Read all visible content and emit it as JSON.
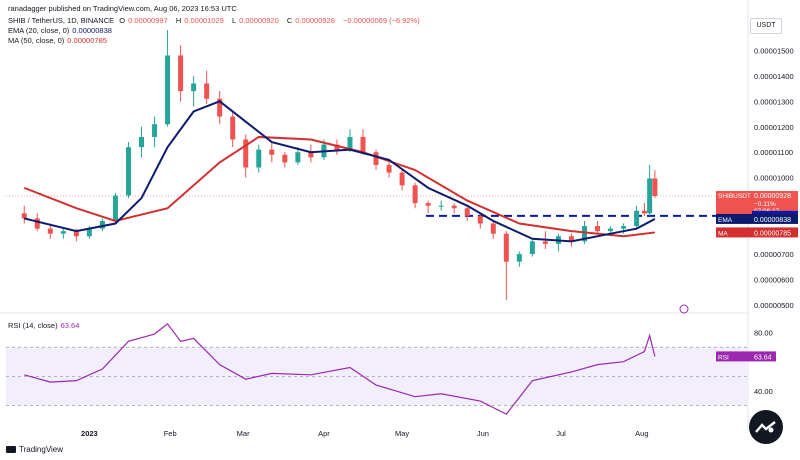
{
  "header": {
    "publisher": "ranadagger published on TradingView.com, Aug 06, 2023 16:53 UTC",
    "symbol_line": {
      "symbol": "SHIB / TetherUS, 1D, BINANCE",
      "o_label": "O",
      "o": "0.00000997",
      "h_label": "H",
      "h": "0.00001029",
      "l_label": "L",
      "l": "0.00000920",
      "c_label": "C",
      "c": "0.00000928",
      "change": "−0.00000069 (−6.92%)"
    },
    "ema_line": {
      "label": "EMA (20, close, 0)",
      "value": "0.00000838"
    },
    "ma_line": {
      "label": "MA (50, close, 0)",
      "value": "0.00000785"
    },
    "rsi_line": {
      "label": "RSI (14, close)",
      "value": "63.64"
    }
  },
  "currency_button": "USDT",
  "price_axis": {
    "ticks": [
      "0.00001500",
      "0.00001400",
      "0.00001300",
      "0.00001200",
      "0.00001100",
      "0.00001000",
      "0.00000700",
      "0.00000600",
      "0.00000500"
    ]
  },
  "rsi_axis": {
    "ticks": [
      "80.00",
      "40.00"
    ]
  },
  "price_labels": {
    "symbol_tag": "SHIBUSDT",
    "price": "0.00000928",
    "change_pct": "−0.11%",
    "countdown": "07:06:17",
    "support": "0.00000850",
    "ema_tag": "EMA",
    "ema_value": "0.00000838",
    "ma_tag": "MA",
    "ma_value": "0.00000785",
    "rsi_tag": "RSI",
    "rsi_value": "63.64"
  },
  "time_axis": [
    "2023",
    "Feb",
    "Mar",
    "Apr",
    "May",
    "Jun",
    "Jul",
    "Aug"
  ],
  "footer": {
    "brand": "TradingView"
  },
  "colors": {
    "up": "#26a69a",
    "down": "#ef5350",
    "ema": "#0d1b6e",
    "ma": "#d32f2f",
    "rsi": "#9c27b0",
    "support_line": "#0a1aa8",
    "rsi_band": "#f3eefb"
  },
  "chart_data": {
    "type": "candlestick",
    "title": "SHIB / TetherUS, 1D, BINANCE",
    "price_ylim": [
      5e-06,
      1.58e-05
    ],
    "support_level": 8.5e-06,
    "candles": [
      {
        "date": "2022-12-07",
        "o": 8.6,
        "h": 8.9,
        "l": 8.2,
        "c": 8.4
      },
      {
        "date": "2022-12-12",
        "o": 8.4,
        "h": 8.6,
        "l": 7.9,
        "c": 8.0
      },
      {
        "date": "2022-12-17",
        "o": 8.0,
        "h": 8.2,
        "l": 7.6,
        "c": 7.8
      },
      {
        "date": "2022-12-22",
        "o": 7.8,
        "h": 8.0,
        "l": 7.6,
        "c": 7.9
      },
      {
        "date": "2022-12-27",
        "o": 7.9,
        "h": 8.0,
        "l": 7.5,
        "c": 7.7
      },
      {
        "date": "2023-01-01",
        "o": 7.7,
        "h": 8.1,
        "l": 7.6,
        "c": 8.0
      },
      {
        "date": "2023-01-06",
        "o": 8.0,
        "h": 8.4,
        "l": 7.9,
        "c": 8.3
      },
      {
        "date": "2023-01-11",
        "o": 8.3,
        "h": 9.4,
        "l": 8.2,
        "c": 9.3
      },
      {
        "date": "2023-01-16",
        "o": 9.3,
        "h": 11.4,
        "l": 9.2,
        "c": 11.2
      },
      {
        "date": "2023-01-21",
        "o": 11.2,
        "h": 12.0,
        "l": 10.8,
        "c": 11.6
      },
      {
        "date": "2023-01-26",
        "o": 11.6,
        "h": 12.4,
        "l": 11.2,
        "c": 12.1
      },
      {
        "date": "2023-01-31",
        "o": 12.1,
        "h": 15.8,
        "l": 12.0,
        "c": 14.8
      },
      {
        "date": "2023-02-05",
        "o": 14.8,
        "h": 15.2,
        "l": 13.0,
        "c": 13.4
      },
      {
        "date": "2023-02-10",
        "o": 13.4,
        "h": 14.0,
        "l": 12.8,
        "c": 13.7
      },
      {
        "date": "2023-02-15",
        "o": 13.7,
        "h": 14.2,
        "l": 12.9,
        "c": 13.1
      },
      {
        "date": "2023-02-20",
        "o": 13.1,
        "h": 13.4,
        "l": 12.1,
        "c": 12.4
      },
      {
        "date": "2023-02-25",
        "o": 12.4,
        "h": 12.6,
        "l": 11.2,
        "c": 11.5
      },
      {
        "date": "2023-03-02",
        "o": 11.5,
        "h": 11.7,
        "l": 10.0,
        "c": 10.4
      },
      {
        "date": "2023-03-07",
        "o": 10.4,
        "h": 11.3,
        "l": 10.2,
        "c": 11.1
      },
      {
        "date": "2023-03-12",
        "o": 11.1,
        "h": 11.4,
        "l": 10.6,
        "c": 10.9
      },
      {
        "date": "2023-03-17",
        "o": 10.9,
        "h": 11.0,
        "l": 10.4,
        "c": 10.6
      },
      {
        "date": "2023-03-22",
        "o": 10.6,
        "h": 11.2,
        "l": 10.5,
        "c": 11.0
      },
      {
        "date": "2023-03-27",
        "o": 11.0,
        "h": 11.3,
        "l": 10.6,
        "c": 10.8
      },
      {
        "date": "2023-04-01",
        "o": 10.8,
        "h": 11.5,
        "l": 10.7,
        "c": 11.3
      },
      {
        "date": "2023-04-06",
        "o": 11.3,
        "h": 11.5,
        "l": 10.9,
        "c": 11.1
      },
      {
        "date": "2023-04-11",
        "o": 11.1,
        "h": 11.9,
        "l": 11.0,
        "c": 11.6
      },
      {
        "date": "2023-04-16",
        "o": 11.6,
        "h": 11.9,
        "l": 10.9,
        "c": 11.0
      },
      {
        "date": "2023-04-21",
        "o": 11.0,
        "h": 11.1,
        "l": 10.3,
        "c": 10.5
      },
      {
        "date": "2023-04-26",
        "o": 10.5,
        "h": 10.6,
        "l": 10.0,
        "c": 10.2
      },
      {
        "date": "2023-05-01",
        "o": 10.2,
        "h": 10.3,
        "l": 9.5,
        "c": 9.7
      },
      {
        "date": "2023-05-06",
        "o": 9.7,
        "h": 9.8,
        "l": 8.8,
        "c": 9.0
      },
      {
        "date": "2023-05-11",
        "o": 9.0,
        "h": 9.1,
        "l": 8.6,
        "c": 8.9
      },
      {
        "date": "2023-05-16",
        "o": 8.9,
        "h": 9.1,
        "l": 8.7,
        "c": 8.9
      },
      {
        "date": "2023-05-21",
        "o": 8.9,
        "h": 9.0,
        "l": 8.6,
        "c": 8.8
      },
      {
        "date": "2023-05-26",
        "o": 8.8,
        "h": 8.9,
        "l": 8.3,
        "c": 8.5
      },
      {
        "date": "2023-05-31",
        "o": 8.5,
        "h": 8.6,
        "l": 8.0,
        "c": 8.2
      },
      {
        "date": "2023-06-05",
        "o": 8.2,
        "h": 8.3,
        "l": 7.6,
        "c": 7.8
      },
      {
        "date": "2023-06-10",
        "o": 7.8,
        "h": 7.9,
        "l": 5.2,
        "c": 6.7
      },
      {
        "date": "2023-06-15",
        "o": 6.7,
        "h": 7.1,
        "l": 6.5,
        "c": 7.0
      },
      {
        "date": "2023-06-20",
        "o": 7.0,
        "h": 7.6,
        "l": 6.9,
        "c": 7.5
      },
      {
        "date": "2023-06-25",
        "o": 7.5,
        "h": 7.9,
        "l": 7.2,
        "c": 7.4
      },
      {
        "date": "2023-06-30",
        "o": 7.4,
        "h": 7.8,
        "l": 7.1,
        "c": 7.7
      },
      {
        "date": "2023-07-05",
        "o": 7.7,
        "h": 7.8,
        "l": 7.3,
        "c": 7.5
      },
      {
        "date": "2023-07-10",
        "o": 7.5,
        "h": 8.3,
        "l": 7.4,
        "c": 8.1
      },
      {
        "date": "2023-07-15",
        "o": 8.1,
        "h": 8.3,
        "l": 7.8,
        "c": 7.9
      },
      {
        "date": "2023-07-20",
        "o": 7.9,
        "h": 8.1,
        "l": 7.7,
        "c": 8.0
      },
      {
        "date": "2023-07-25",
        "o": 8.0,
        "h": 8.2,
        "l": 7.8,
        "c": 8.1
      },
      {
        "date": "2023-07-30",
        "o": 8.1,
        "h": 8.9,
        "l": 8.0,
        "c": 8.7
      },
      {
        "date": "2023-08-02",
        "o": 8.7,
        "h": 9.0,
        "l": 8.5,
        "c": 8.6
      },
      {
        "date": "2023-08-04",
        "o": 8.6,
        "h": 10.5,
        "l": 8.5,
        "c": 9.97
      },
      {
        "date": "2023-08-06",
        "o": 9.97,
        "h": 10.29,
        "l": 9.2,
        "c": 9.28
      }
    ],
    "ema_20": [
      {
        "date": "2022-12-07",
        "v": 8.4
      },
      {
        "date": "2022-12-27",
        "v": 7.9
      },
      {
        "date": "2023-01-11",
        "v": 8.2
      },
      {
        "date": "2023-01-21",
        "v": 9.2
      },
      {
        "date": "2023-01-31",
        "v": 11.2
      },
      {
        "date": "2023-02-10",
        "v": 12.6
      },
      {
        "date": "2023-02-20",
        "v": 13.0
      },
      {
        "date": "2023-03-02",
        "v": 12.2
      },
      {
        "date": "2023-03-12",
        "v": 11.4
      },
      {
        "date": "2023-03-27",
        "v": 11.0
      },
      {
        "date": "2023-04-11",
        "v": 11.1
      },
      {
        "date": "2023-04-26",
        "v": 10.7
      },
      {
        "date": "2023-05-11",
        "v": 9.6
      },
      {
        "date": "2023-05-26",
        "v": 8.9
      },
      {
        "date": "2023-06-05",
        "v": 8.3
      },
      {
        "date": "2023-06-20",
        "v": 7.6
      },
      {
        "date": "2023-07-05",
        "v": 7.5
      },
      {
        "date": "2023-07-20",
        "v": 7.8
      },
      {
        "date": "2023-07-30",
        "v": 8.0
      },
      {
        "date": "2023-08-06",
        "v": 8.38
      }
    ],
    "ma_50": [
      {
        "date": "2022-12-07",
        "v": 9.6
      },
      {
        "date": "2022-12-27",
        "v": 8.8
      },
      {
        "date": "2023-01-11",
        "v": 8.3
      },
      {
        "date": "2023-01-31",
        "v": 8.8
      },
      {
        "date": "2023-02-20",
        "v": 10.6
      },
      {
        "date": "2023-03-07",
        "v": 11.6
      },
      {
        "date": "2023-03-27",
        "v": 11.5
      },
      {
        "date": "2023-04-16",
        "v": 11.0
      },
      {
        "date": "2023-05-06",
        "v": 10.3
      },
      {
        "date": "2023-05-26",
        "v": 9.1
      },
      {
        "date": "2023-06-15",
        "v": 8.2
      },
      {
        "date": "2023-07-05",
        "v": 7.9
      },
      {
        "date": "2023-07-25",
        "v": 7.7
      },
      {
        "date": "2023-08-06",
        "v": 7.85
      }
    ],
    "rsi_14": {
      "ylim": [
        20,
        90
      ],
      "band": [
        30,
        70
      ],
      "values": [
        {
          "date": "2022-12-07",
          "v": 51
        },
        {
          "date": "2022-12-17",
          "v": 46
        },
        {
          "date": "2022-12-27",
          "v": 47
        },
        {
          "date": "2023-01-06",
          "v": 55
        },
        {
          "date": "2023-01-16",
          "v": 74
        },
        {
          "date": "2023-01-26",
          "v": 79
        },
        {
          "date": "2023-01-31",
          "v": 86
        },
        {
          "date": "2023-02-05",
          "v": 74
        },
        {
          "date": "2023-02-10",
          "v": 76
        },
        {
          "date": "2023-02-20",
          "v": 58
        },
        {
          "date": "2023-03-02",
          "v": 48
        },
        {
          "date": "2023-03-12",
          "v": 52
        },
        {
          "date": "2023-03-27",
          "v": 51
        },
        {
          "date": "2023-04-11",
          "v": 56
        },
        {
          "date": "2023-04-21",
          "v": 44
        },
        {
          "date": "2023-05-06",
          "v": 36
        },
        {
          "date": "2023-05-16",
          "v": 38
        },
        {
          "date": "2023-05-31",
          "v": 33
        },
        {
          "date": "2023-06-10",
          "v": 24
        },
        {
          "date": "2023-06-20",
          "v": 47
        },
        {
          "date": "2023-07-05",
          "v": 53
        },
        {
          "date": "2023-07-15",
          "v": 58
        },
        {
          "date": "2023-07-25",
          "v": 60
        },
        {
          "date": "2023-08-02",
          "v": 67
        },
        {
          "date": "2023-08-04",
          "v": 78
        },
        {
          "date": "2023-08-06",
          "v": 63.64
        }
      ]
    }
  }
}
